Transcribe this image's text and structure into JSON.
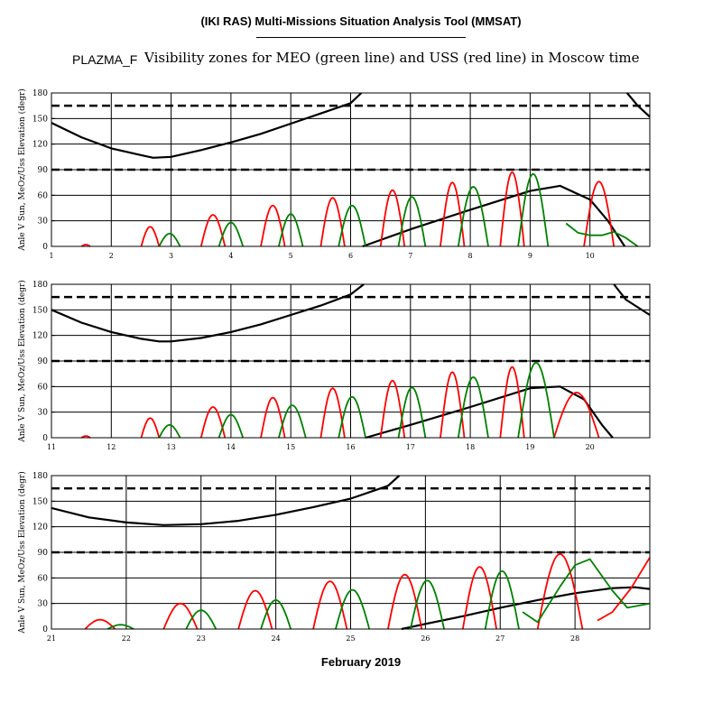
{
  "header": {
    "title": "(IKI RAS) Multi-Missions Situation Analysis Tool (MMSAT)",
    "tag": "PLAZMA_F",
    "subtitle": "Visibility zones for MEO (green line) and USS (red line) in Moscow time"
  },
  "colors": {
    "sun_angle": "#000000",
    "meo": "#008000",
    "uss": "#ff0000",
    "threshold": "#000000",
    "grid": "#000000"
  },
  "chart_data": [
    {
      "type": "line",
      "ylabel": "Anle V Sun, MeOz/Uss Elevation (degr)",
      "xlabel": "",
      "xlim": [
        1,
        11
      ],
      "ylim": [
        0,
        180
      ],
      "x_ticks": [
        1,
        2,
        3,
        4,
        5,
        6,
        7,
        8,
        9,
        10
      ],
      "y_ticks": [
        0,
        30,
        60,
        90,
        120,
        150,
        180
      ],
      "grid": true,
      "thresholds": [
        90,
        165
      ],
      "series": [
        {
          "key": "sun",
          "points": [
            [
              1,
              145
            ],
            [
              1.5,
              128
            ],
            [
              2,
              115
            ],
            [
              2.5,
              107
            ],
            [
              2.7,
              104
            ],
            [
              3,
              105
            ],
            [
              3.5,
              113
            ],
            [
              4,
              122
            ],
            [
              4.5,
              132
            ],
            [
              5,
              144
            ],
            [
              5.5,
              156
            ],
            [
              6,
              168
            ],
            [
              6.18,
              180
            ]
          ]
        },
        {
          "key": "sun",
          "points": [
            [
              6.2,
              0
            ],
            [
              7,
              20
            ],
            [
              8,
              43
            ],
            [
              9,
              65
            ],
            [
              9.5,
              71
            ],
            [
              10,
              55
            ],
            [
              10.3,
              30
            ],
            [
              10.58,
              0
            ]
          ]
        },
        {
          "key": "sun",
          "points": [
            [
              10.62,
              180
            ],
            [
              10.8,
              165
            ],
            [
              11,
              152
            ]
          ]
        },
        {
          "key": "uss",
          "arcs": [
            [
              1.5,
              1.65,
              2
            ],
            [
              2.5,
              2.8,
              23
            ],
            [
              3.5,
              3.9,
              37
            ],
            [
              4.5,
              4.9,
              48
            ],
            [
              5.5,
              5.9,
              57
            ],
            [
              6.5,
              6.9,
              66
            ],
            [
              7.5,
              7.9,
              75
            ],
            [
              8.5,
              8.9,
              87
            ],
            [
              9.9,
              10.4,
              76
            ]
          ]
        },
        {
          "key": "meo",
          "arcs": [
            [
              2.8,
              3.15,
              15
            ],
            [
              3.8,
              4.2,
              28
            ],
            [
              4.8,
              5.2,
              38
            ],
            [
              5.8,
              6.25,
              48
            ],
            [
              6.8,
              7.25,
              58
            ],
            [
              7.8,
              8.3,
              70
            ],
            [
              8.8,
              9.3,
              85
            ]
          ]
        },
        {
          "key": "meo",
          "points": [
            [
              9.6,
              27
            ],
            [
              9.8,
              16
            ],
            [
              10,
              13
            ],
            [
              10.2,
              13
            ],
            [
              10.4,
              17
            ],
            [
              10.6,
              10
            ],
            [
              10.8,
              0
            ]
          ]
        }
      ]
    },
    {
      "type": "line",
      "ylabel": "Anle V Sun, MeOz/Uss Elevation (degr)",
      "xlabel": "",
      "xlim": [
        11,
        21
      ],
      "ylim": [
        0,
        180
      ],
      "x_ticks": [
        11,
        12,
        13,
        14,
        15,
        16,
        17,
        18,
        19,
        20
      ],
      "y_ticks": [
        0,
        30,
        60,
        90,
        120,
        150,
        180
      ],
      "grid": true,
      "thresholds": [
        90,
        165
      ],
      "series": [
        {
          "key": "sun",
          "points": [
            [
              11,
              150
            ],
            [
              11.5,
              135
            ],
            [
              12,
              124
            ],
            [
              12.5,
              116
            ],
            [
              12.8,
              113
            ],
            [
              13,
              113
            ],
            [
              13.5,
              117
            ],
            [
              14,
              124
            ],
            [
              14.5,
              133
            ],
            [
              15,
              144
            ],
            [
              15.5,
              155
            ],
            [
              16,
              168
            ],
            [
              16.22,
              180
            ]
          ]
        },
        {
          "key": "sun",
          "points": [
            [
              16.25,
              0
            ],
            [
              17,
              15
            ],
            [
              18,
              36
            ],
            [
              19,
              58
            ],
            [
              19.5,
              60
            ],
            [
              19.9,
              45
            ],
            [
              20.2,
              15
            ],
            [
              20.38,
              0
            ]
          ]
        },
        {
          "key": "sun",
          "points": [
            [
              20.4,
              180
            ],
            [
              20.6,
              162
            ],
            [
              21,
              144
            ]
          ]
        },
        {
          "key": "uss",
          "arcs": [
            [
              11.5,
              11.65,
              2
            ],
            [
              12.5,
              12.8,
              23
            ],
            [
              13.5,
              13.9,
              36
            ],
            [
              14.5,
              14.9,
              47
            ],
            [
              15.5,
              15.9,
              58
            ],
            [
              16.5,
              16.9,
              67
            ],
            [
              17.5,
              17.9,
              77
            ],
            [
              18.5,
              18.9,
              83
            ],
            [
              19.4,
              20.15,
              53
            ]
          ]
        },
        {
          "key": "meo",
          "arcs": [
            [
              12.8,
              13.15,
              15
            ],
            [
              13.8,
              14.2,
              27
            ],
            [
              14.8,
              15.25,
              38
            ],
            [
              15.8,
              16.25,
              48
            ],
            [
              16.8,
              17.25,
              59
            ],
            [
              17.8,
              18.3,
              71
            ],
            [
              18.8,
              19.4,
              88
            ]
          ]
        }
      ]
    },
    {
      "type": "line",
      "ylabel": "Anle V Sun, MeOz/Uss Elevation (degr)",
      "xlabel": "February 2019",
      "xlim": [
        21,
        29
      ],
      "ylim": [
        0,
        180
      ],
      "x_ticks": [
        21,
        22,
        23,
        24,
        25,
        26,
        27,
        28
      ],
      "y_ticks": [
        0,
        30,
        60,
        90,
        120,
        150,
        180
      ],
      "grid": true,
      "thresholds": [
        90,
        165
      ],
      "series": [
        {
          "key": "sun",
          "points": [
            [
              21,
              142
            ],
            [
              21.5,
              131
            ],
            [
              22,
              125
            ],
            [
              22.5,
              122
            ],
            [
              23,
              123
            ],
            [
              23.5,
              127
            ],
            [
              24,
              134
            ],
            [
              24.5,
              143
            ],
            [
              25,
              153
            ],
            [
              25.5,
              168
            ],
            [
              25.65,
              180
            ]
          ]
        },
        {
          "key": "sun",
          "points": [
            [
              25.68,
              0
            ],
            [
              26,
              6
            ],
            [
              26.5,
              15
            ],
            [
              27,
              25
            ],
            [
              27.5,
              34
            ],
            [
              28,
              42
            ],
            [
              28.5,
              48
            ],
            [
              28.8,
              49
            ],
            [
              29,
              47
            ]
          ]
        },
        {
          "key": "uss",
          "arcs": [
            [
              21.45,
              21.85,
              11
            ],
            [
              22.5,
              22.95,
              30
            ],
            [
              23.5,
              23.95,
              45
            ],
            [
              24.5,
              24.95,
              56
            ],
            [
              25.5,
              25.95,
              64
            ],
            [
              26.5,
              26.95,
              73
            ],
            [
              27.5,
              28.1,
              88
            ]
          ]
        },
        {
          "key": "uss",
          "points": [
            [
              28.3,
              10
            ],
            [
              28.5,
              20
            ],
            [
              28.75,
              48
            ],
            [
              29,
              84
            ]
          ]
        },
        {
          "key": "meo",
          "arcs": [
            [
              21.75,
              22.1,
              5
            ],
            [
              22.8,
              23.2,
              22
            ],
            [
              23.8,
              24.2,
              34
            ],
            [
              24.8,
              25.25,
              46
            ],
            [
              25.8,
              26.25,
              57
            ],
            [
              26.8,
              27.25,
              68
            ]
          ]
        },
        {
          "key": "meo",
          "points": [
            [
              27.3,
              20
            ],
            [
              27.5,
              8
            ],
            [
              27.8,
              50
            ],
            [
              28,
              75
            ],
            [
              28.2,
              82
            ],
            [
              28.5,
              45
            ],
            [
              28.7,
              25
            ],
            [
              29,
              30
            ]
          ]
        }
      ]
    }
  ]
}
